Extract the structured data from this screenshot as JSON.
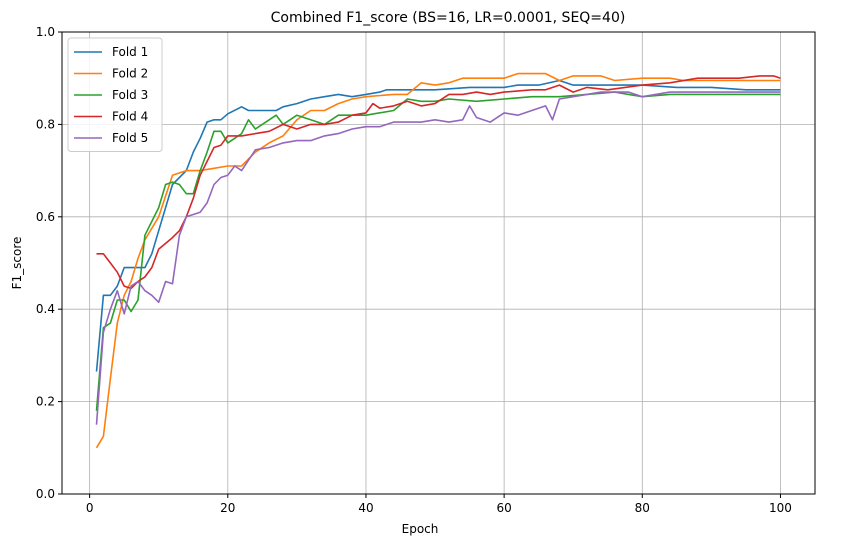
{
  "chart_data": {
    "type": "line",
    "title": "Combined F1_score (BS=16, LR=0.0001, SEQ=40)",
    "xlabel": "Epoch",
    "ylabel": "F1_score",
    "xlim": [
      -4,
      105
    ],
    "ylim": [
      0.0,
      1.0
    ],
    "xticks": [
      0,
      20,
      40,
      60,
      80,
      100
    ],
    "yticks": [
      0.0,
      0.2,
      0.4,
      0.6,
      0.8,
      1.0
    ],
    "xtick_labels": [
      "0",
      "20",
      "40",
      "60",
      "80",
      "100"
    ],
    "ytick_labels": [
      "0.0",
      "0.2",
      "0.4",
      "0.6",
      "0.8",
      "1.0"
    ],
    "grid": true,
    "legend_position": "top-left",
    "series": [
      {
        "name": "Fold 1",
        "color": "#1f77b4",
        "x": [
          1,
          2,
          3,
          4,
          5,
          6,
          7,
          8,
          9,
          10,
          12,
          14,
          15,
          16,
          17,
          18,
          19,
          20,
          22,
          23,
          25,
          27,
          28,
          30,
          32,
          34,
          36,
          38,
          40,
          42,
          43,
          45,
          50,
          55,
          60,
          62,
          65,
          68,
          70,
          72,
          75,
          80,
          85,
          90,
          95,
          100
        ],
        "y": [
          0.265,
          0.43,
          0.43,
          0.45,
          0.49,
          0.49,
          0.49,
          0.49,
          0.52,
          0.57,
          0.67,
          0.7,
          0.74,
          0.77,
          0.805,
          0.81,
          0.81,
          0.823,
          0.838,
          0.83,
          0.83,
          0.83,
          0.838,
          0.845,
          0.855,
          0.86,
          0.865,
          0.86,
          0.865,
          0.87,
          0.875,
          0.875,
          0.875,
          0.88,
          0.88,
          0.885,
          0.885,
          0.895,
          0.885,
          0.885,
          0.885,
          0.885,
          0.88,
          0.88,
          0.875,
          0.875
        ]
      },
      {
        "name": "Fold 2",
        "color": "#ff7f0e",
        "x": [
          1,
          2,
          3,
          4,
          5,
          6,
          7,
          8,
          10,
          12,
          14,
          16,
          18,
          20,
          22,
          24,
          26,
          28,
          30,
          32,
          34,
          36,
          38,
          40,
          44,
          46,
          48,
          50,
          52,
          54,
          56,
          60,
          62,
          66,
          68,
          70,
          74,
          76,
          80,
          84,
          86,
          90,
          94,
          100
        ],
        "y": [
          0.1,
          0.125,
          0.25,
          0.37,
          0.43,
          0.46,
          0.51,
          0.55,
          0.6,
          0.69,
          0.7,
          0.7,
          0.705,
          0.71,
          0.71,
          0.74,
          0.76,
          0.775,
          0.81,
          0.83,
          0.83,
          0.845,
          0.855,
          0.86,
          0.865,
          0.865,
          0.89,
          0.885,
          0.89,
          0.9,
          0.9,
          0.9,
          0.91,
          0.91,
          0.895,
          0.905,
          0.905,
          0.895,
          0.9,
          0.9,
          0.895,
          0.895,
          0.895,
          0.895
        ]
      },
      {
        "name": "Fold 3",
        "color": "#2ca02c",
        "x": [
          1,
          2,
          3,
          4,
          5,
          6,
          7,
          8,
          10,
          11,
          12,
          13,
          14,
          15,
          16,
          17,
          18,
          19,
          20,
          21,
          22,
          23,
          24,
          26,
          27,
          28,
          30,
          32,
          34,
          36,
          40,
          44,
          46,
          48,
          50,
          52,
          56,
          60,
          64,
          68,
          72,
          76,
          80,
          84,
          90,
          92,
          100
        ],
        "y": [
          0.18,
          0.36,
          0.37,
          0.42,
          0.42,
          0.395,
          0.42,
          0.56,
          0.62,
          0.67,
          0.675,
          0.67,
          0.65,
          0.65,
          0.7,
          0.74,
          0.785,
          0.785,
          0.76,
          0.77,
          0.78,
          0.81,
          0.79,
          0.81,
          0.82,
          0.8,
          0.82,
          0.81,
          0.8,
          0.82,
          0.82,
          0.83,
          0.855,
          0.85,
          0.85,
          0.855,
          0.85,
          0.855,
          0.86,
          0.86,
          0.865,
          0.87,
          0.86,
          0.865,
          0.865,
          0.865,
          0.865
        ]
      },
      {
        "name": "Fold 4",
        "color": "#d62728",
        "x": [
          1,
          2,
          3,
          4,
          5,
          6,
          7,
          8,
          9,
          10,
          12,
          13,
          14,
          15,
          16,
          17,
          18,
          19,
          20,
          22,
          24,
          26,
          28,
          30,
          32,
          34,
          36,
          38,
          40,
          41,
          42,
          44,
          46,
          48,
          50,
          52,
          54,
          56,
          58,
          60,
          64,
          66,
          68,
          70,
          72,
          75,
          80,
          84,
          88,
          92,
          94,
          97,
          99,
          100
        ],
        "y": [
          0.52,
          0.52,
          0.5,
          0.48,
          0.45,
          0.445,
          0.46,
          0.47,
          0.49,
          0.53,
          0.555,
          0.57,
          0.6,
          0.64,
          0.69,
          0.72,
          0.75,
          0.755,
          0.775,
          0.775,
          0.78,
          0.785,
          0.8,
          0.79,
          0.8,
          0.8,
          0.805,
          0.82,
          0.825,
          0.845,
          0.835,
          0.84,
          0.85,
          0.84,
          0.845,
          0.865,
          0.865,
          0.87,
          0.865,
          0.87,
          0.875,
          0.875,
          0.885,
          0.87,
          0.88,
          0.875,
          0.885,
          0.89,
          0.9,
          0.9,
          0.9,
          0.905,
          0.905,
          0.9
        ]
      },
      {
        "name": "Fold 5",
        "color": "#9467bd",
        "x": [
          1,
          2,
          3,
          4,
          5,
          6,
          7,
          8,
          9,
          10,
          11,
          12,
          13,
          14,
          16,
          17,
          18,
          19,
          20,
          21,
          22,
          24,
          26,
          28,
          30,
          32,
          34,
          36,
          38,
          40,
          42,
          44,
          46,
          48,
          50,
          52,
          54,
          55,
          56,
          58,
          60,
          62,
          64,
          66,
          67,
          68,
          70,
          72,
          74,
          76,
          78,
          80,
          84,
          88,
          92,
          96,
          100
        ],
        "y": [
          0.15,
          0.35,
          0.4,
          0.44,
          0.39,
          0.45,
          0.46,
          0.44,
          0.43,
          0.415,
          0.46,
          0.455,
          0.56,
          0.6,
          0.61,
          0.63,
          0.67,
          0.685,
          0.69,
          0.71,
          0.7,
          0.745,
          0.75,
          0.76,
          0.765,
          0.765,
          0.775,
          0.78,
          0.79,
          0.795,
          0.795,
          0.805,
          0.805,
          0.805,
          0.81,
          0.805,
          0.81,
          0.84,
          0.815,
          0.805,
          0.825,
          0.82,
          0.83,
          0.84,
          0.81,
          0.855,
          0.86,
          0.865,
          0.87,
          0.87,
          0.87,
          0.86,
          0.87,
          0.87,
          0.87,
          0.87,
          0.87
        ]
      }
    ]
  }
}
